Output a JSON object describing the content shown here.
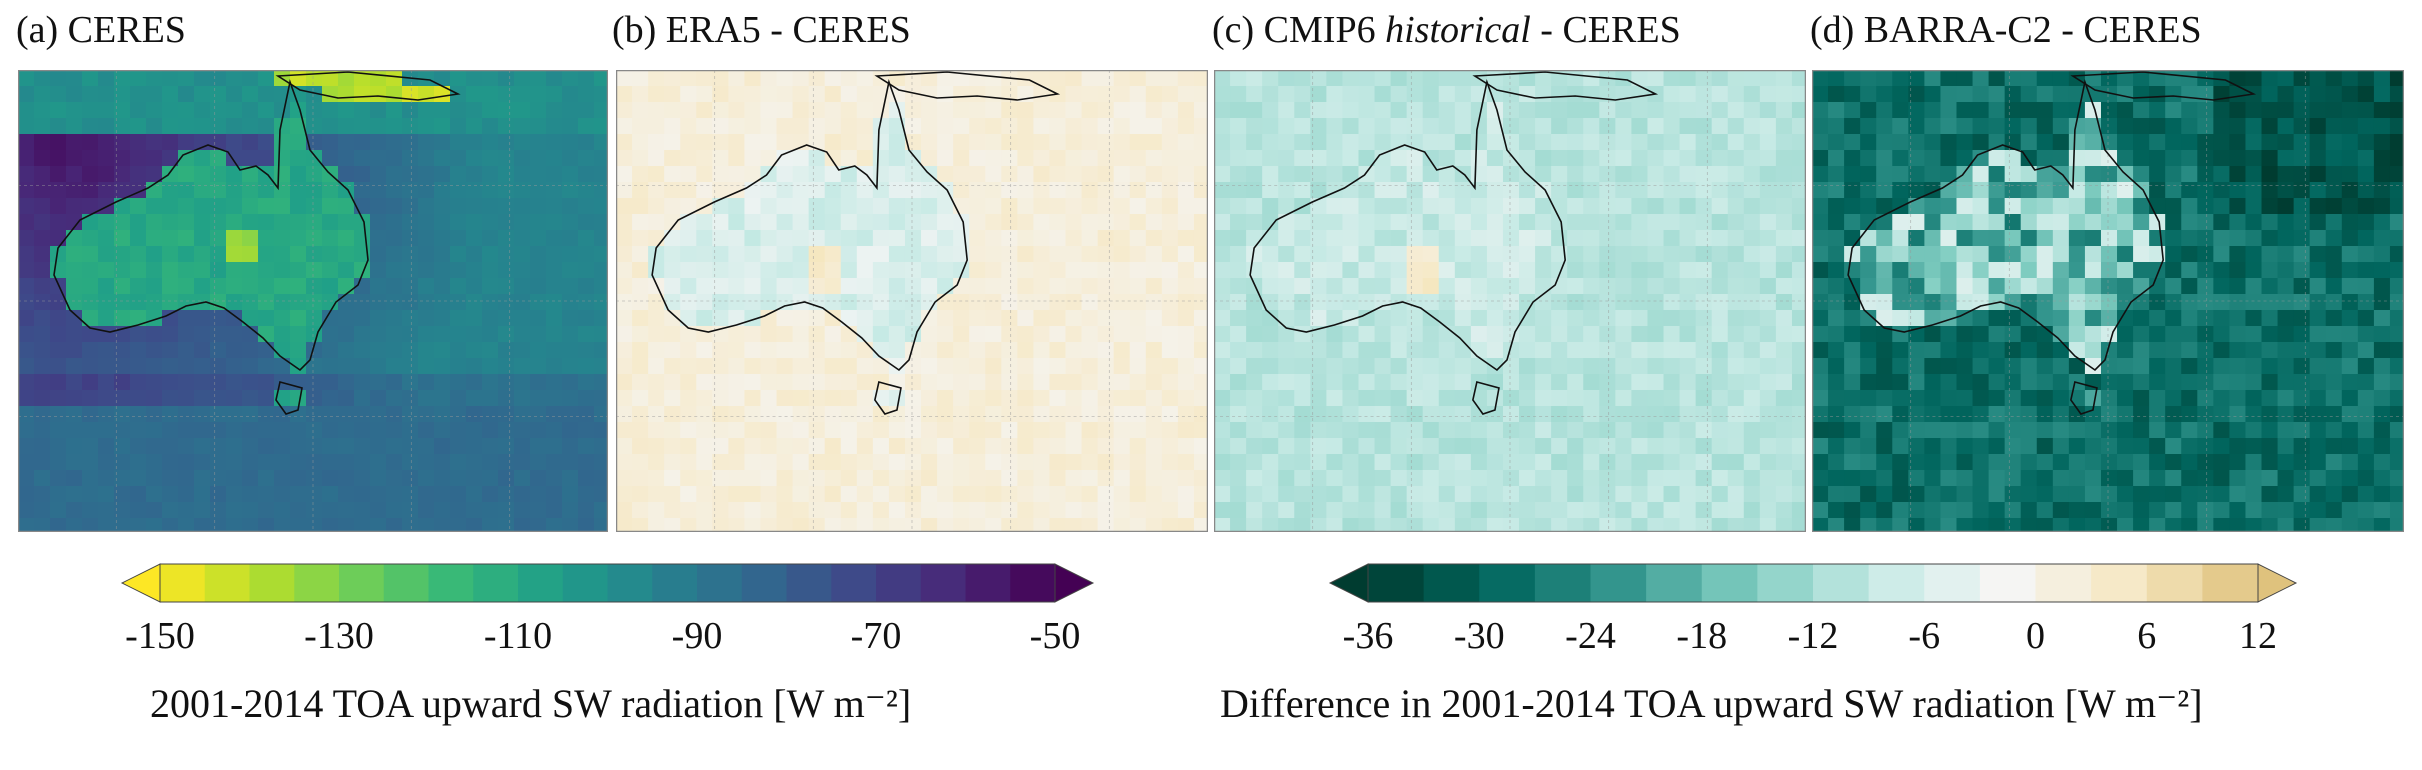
{
  "chart_data": [
    {
      "type": "heatmap",
      "title": "(a) CERES",
      "colormap": "viridis_r",
      "colorbar_range": [
        -150,
        -50
      ],
      "colorbar_ticks": [
        "-150",
        "-130",
        "-110",
        "-90",
        "-70",
        "-50"
      ],
      "colorbar_label": "2001-2014 TOA upward SW radiation [W m⁻²]",
      "typical_values": {
        "ocean_south": -85,
        "ocean_north": -100,
        "land": -110,
        "central_australia": -135,
        "new_guinea": -140
      }
    },
    {
      "type": "heatmap",
      "title_parts": [
        "(b) ERA5 - CERES",
        "",
        ""
      ],
      "colormap": "diverging_teal_tan",
      "colorbar_range": [
        -36,
        12
      ],
      "typical_values": {
        "land": -6,
        "ocean": 2
      }
    },
    {
      "type": "heatmap",
      "title_parts": [
        "(c) CMIP6 ",
        "historical",
        " - CERES"
      ],
      "colormap": "diverging_teal_tan",
      "colorbar_range": [
        -36,
        12
      ],
      "typical_values": {
        "land": -8,
        "ocean": -10
      }
    },
    {
      "type": "heatmap",
      "title_parts": [
        "(d) BARRA-C2 - CERES",
        "",
        ""
      ],
      "colormap": "diverging_teal_tan",
      "colorbar_range": [
        -36,
        12
      ],
      "colorbar_ticks": [
        "-36",
        "-30",
        "-24",
        "-18",
        "-12",
        "-6",
        "0",
        "6",
        "12"
      ],
      "colorbar_label": "Difference in 2001-2014 TOA upward SW radiation [W m⁻²]",
      "typical_values": {
        "land": -16,
        "ocean": -28
      }
    }
  ],
  "colors": {
    "viridis": [
      "#fde725",
      "#b5de2b",
      "#6ece58",
      "#35b779",
      "#1f9e89",
      "#26828e",
      "#31688e",
      "#3e4989",
      "#482878",
      "#440154"
    ],
    "diverging": [
      "#003c30",
      "#01665e",
      "#35978f",
      "#80cdc1",
      "#c7eae5",
      "#f5f5f5",
      "#f6e8c3",
      "#dfc27d"
    ]
  }
}
